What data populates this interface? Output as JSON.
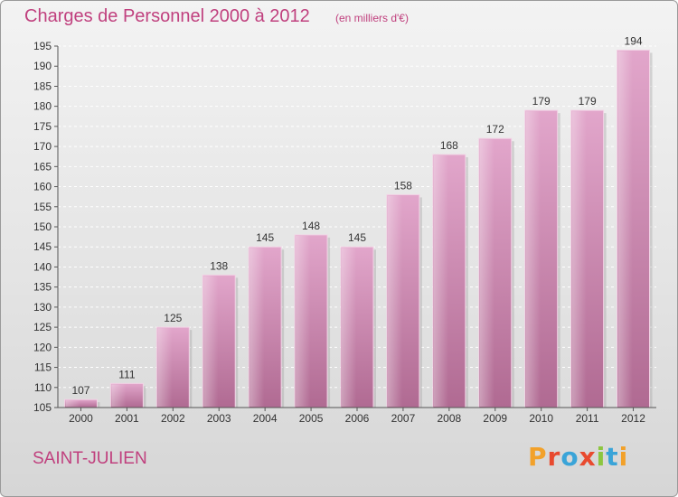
{
  "title": "Charges de Personnel 2000 à 2012",
  "subtitle": "(en milliers d'€)",
  "location": "SAINT-JULIEN",
  "brand": {
    "text": "Proxiti",
    "colors": [
      "#f2a12a",
      "#e84a2f",
      "#3aa4d8",
      "#8cc63f"
    ]
  },
  "chart_data": {
    "type": "bar",
    "categories": [
      "2000",
      "2001",
      "2002",
      "2003",
      "2004",
      "2005",
      "2006",
      "2007",
      "2008",
      "2009",
      "2010",
      "2011",
      "2012"
    ],
    "values": [
      107,
      111,
      125,
      138,
      145,
      148,
      145,
      158,
      168,
      172,
      179,
      179,
      194
    ],
    "data_labels": [
      "107",
      "111",
      "125",
      "138",
      "145",
      "148",
      "145",
      "158",
      "168",
      "172",
      "179",
      "179",
      "194"
    ],
    "ylim": [
      105,
      195
    ],
    "yticks": [
      105,
      110,
      115,
      120,
      125,
      130,
      135,
      140,
      145,
      150,
      155,
      160,
      165,
      170,
      175,
      180,
      185,
      190,
      195
    ],
    "grid": true,
    "bar_color": "#d490b8"
  }
}
